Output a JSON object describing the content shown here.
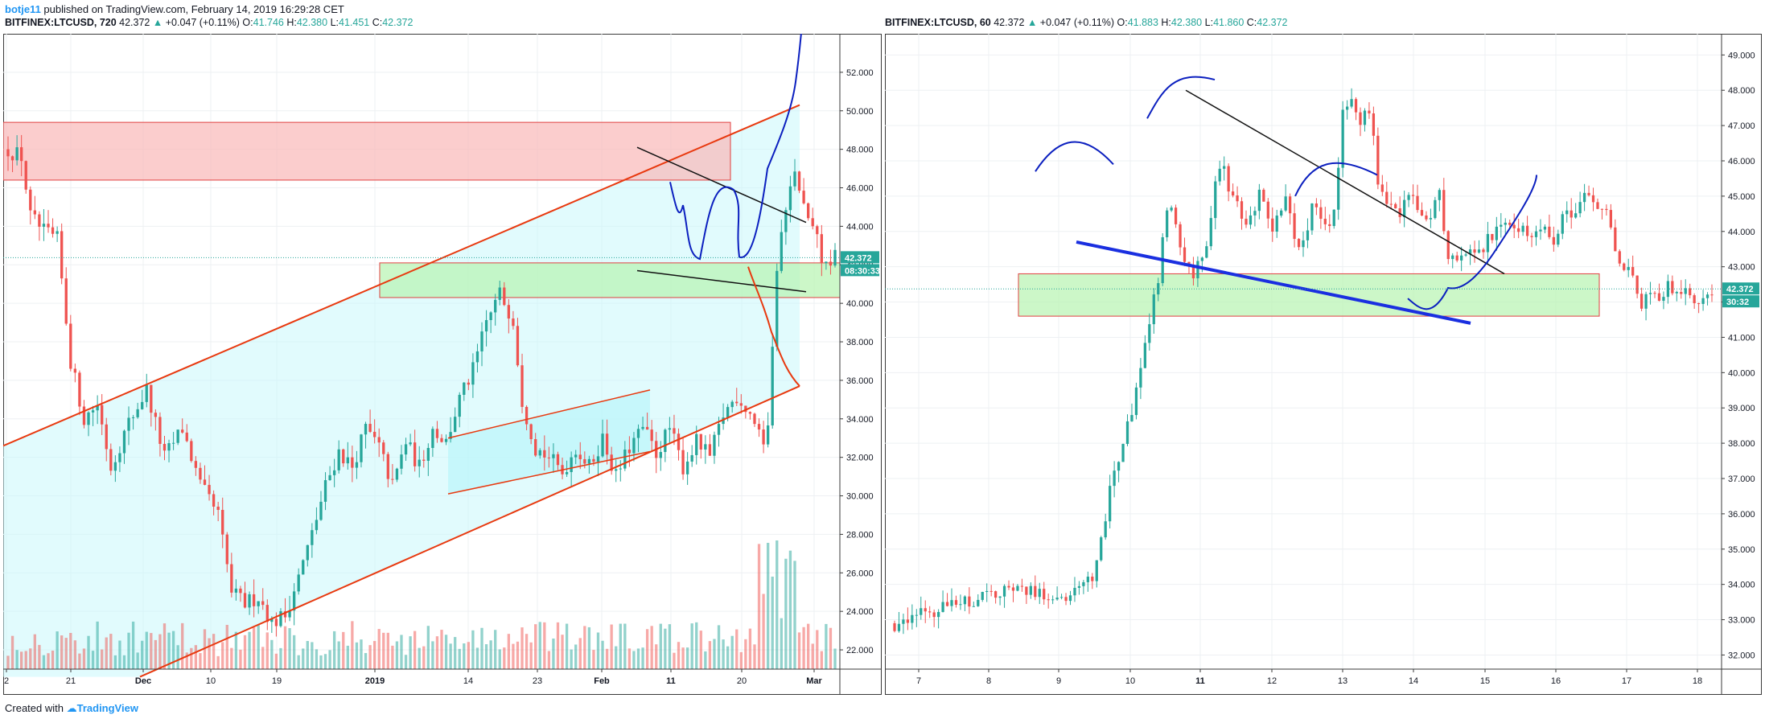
{
  "header": {
    "author": "botje11",
    "published": "published on TradingView.com, February 14, 2019 16:29:28 CET"
  },
  "left_legend": {
    "symbol": "BITFINEX:LTCUSD, 720",
    "last": "42.372",
    "change": "+0.047 (+0.11%)",
    "o": "41.746",
    "h": "42.380",
    "l": "41.451",
    "c": "42.372"
  },
  "right_legend": {
    "symbol": "BITFINEX:LTCUSD, 60",
    "last": "42.372",
    "change": "+0.047 (+0.11%)",
    "o": "41.883",
    "h": "42.380",
    "l": "41.860",
    "c": "42.372"
  },
  "footer": {
    "prefix": "Created with",
    "brand": "TradingView"
  },
  "colors": {
    "up": "#26a69a",
    "down": "#ef5350",
    "channel": "#e8390f",
    "user_line": "#0b1fbf",
    "resist_zone": "#f9b8b8",
    "support_zone": "#b6f4b0"
  },
  "chart_data": [
    {
      "type": "candlestick",
      "title": "BITFINEX:LTCUSD, 720",
      "ylim": [
        21,
        54
      ],
      "y_ticks": [
        "22.000",
        "24.000",
        "26.000",
        "28.000",
        "30.000",
        "32.000",
        "34.000",
        "36.000",
        "38.000",
        "40.000",
        "42.000",
        "44.000",
        "46.000",
        "48.000",
        "50.000",
        "52.000"
      ],
      "x_ticks": [
        "2",
        "21",
        "Dec",
        "10",
        "19",
        "2019",
        "14",
        "23",
        "Feb",
        "11",
        "20",
        "Mar"
      ],
      "last_price_label": "42.372",
      "countdown_label": "08:30:33",
      "zones": [
        {
          "kind": "resistance",
          "from": 46.4,
          "to": 49.4
        },
        {
          "kind": "support",
          "from": 40.3,
          "to": 42.1
        }
      ],
      "trend": [
        {
          "x": 0,
          "y": 48
        },
        {
          "x": 3,
          "y": 47.6
        },
        {
          "x": 5,
          "y": 44.5
        },
        {
          "x": 8,
          "y": 43.7
        },
        {
          "x": 11,
          "y": 43.3
        },
        {
          "x": 14,
          "y": 37
        },
        {
          "x": 17,
          "y": 34
        },
        {
          "x": 20,
          "y": 34.8
        },
        {
          "x": 23,
          "y": 31.5
        },
        {
          "x": 27,
          "y": 33.8
        },
        {
          "x": 31,
          "y": 35.5
        },
        {
          "x": 35,
          "y": 32
        },
        {
          "x": 39,
          "y": 33.5
        },
        {
          "x": 43,
          "y": 30.5
        },
        {
          "x": 47,
          "y": 29
        },
        {
          "x": 50,
          "y": 25
        },
        {
          "x": 53,
          "y": 24.4
        },
        {
          "x": 56,
          "y": 24.8
        },
        {
          "x": 59,
          "y": 23.4
        },
        {
          "x": 62,
          "y": 23.8
        },
        {
          "x": 65,
          "y": 25.8
        },
        {
          "x": 68,
          "y": 28
        },
        {
          "x": 71,
          "y": 30.5
        },
        {
          "x": 74,
          "y": 32.3
        },
        {
          "x": 77,
          "y": 31.5
        },
        {
          "x": 80,
          "y": 33.5
        },
        {
          "x": 83,
          "y": 32.5
        },
        {
          "x": 86,
          "y": 30.5
        },
        {
          "x": 89,
          "y": 32.8
        },
        {
          "x": 92,
          "y": 31.5
        },
        {
          "x": 95,
          "y": 33.5
        },
        {
          "x": 98,
          "y": 32.8
        },
        {
          "x": 101,
          "y": 35
        },
        {
          "x": 104,
          "y": 36.5
        },
        {
          "x": 107,
          "y": 39
        },
        {
          "x": 110,
          "y": 40.5
        },
        {
          "x": 113,
          "y": 39.2
        },
        {
          "x": 115,
          "y": 35
        },
        {
          "x": 118,
          "y": 32.5
        },
        {
          "x": 121,
          "y": 32
        },
        {
          "x": 124,
          "y": 31.2
        },
        {
          "x": 127,
          "y": 32.5
        },
        {
          "x": 130,
          "y": 31.5
        },
        {
          "x": 133,
          "y": 33
        },
        {
          "x": 136,
          "y": 31
        },
        {
          "x": 139,
          "y": 32.5
        },
        {
          "x": 142,
          "y": 33.5
        },
        {
          "x": 145,
          "y": 32.2
        },
        {
          "x": 148,
          "y": 33.5
        },
        {
          "x": 151,
          "y": 31.5
        },
        {
          "x": 154,
          "y": 32.8
        },
        {
          "x": 157,
          "y": 32
        },
        {
          "x": 160,
          "y": 34.2
        },
        {
          "x": 163,
          "y": 35.2
        },
        {
          "x": 166,
          "y": 34.3
        },
        {
          "x": 169,
          "y": 33
        },
        {
          "x": 170,
          "y": 34
        },
        {
          "x": 172,
          "y": 42
        },
        {
          "x": 174,
          "y": 45
        },
        {
          "x": 176,
          "y": 47
        },
        {
          "x": 178,
          "y": 45
        },
        {
          "x": 180,
          "y": 44
        },
        {
          "x": 182,
          "y": 42.5
        },
        {
          "x": 184,
          "y": 41.8
        },
        {
          "x": 185,
          "y": 42.37
        }
      ],
      "x_count": 186,
      "volume_max": 160
    },
    {
      "type": "candlestick",
      "title": "BITFINEX:LTCUSD, 60",
      "ylim": [
        31.6,
        49.6
      ],
      "y_ticks": [
        "32.000",
        "33.000",
        "34.000",
        "35.000",
        "36.000",
        "37.000",
        "38.000",
        "39.000",
        "40.000",
        "41.000",
        "42.000",
        "43.000",
        "44.000",
        "45.000",
        "46.000",
        "47.000",
        "48.000",
        "49.000"
      ],
      "x_ticks": [
        "7",
        "8",
        "9",
        "10",
        "11",
        "12",
        "13",
        "14",
        "15",
        "16",
        "17",
        "18"
      ],
      "last_price_label": "42.372",
      "countdown_label": "30:32",
      "zones": [
        {
          "kind": "support",
          "from": 41.6,
          "to": 42.8
        }
      ],
      "trend": [
        {
          "x": 0,
          "y": 32.9
        },
        {
          "x": 10,
          "y": 33.3
        },
        {
          "x": 20,
          "y": 33.6
        },
        {
          "x": 28,
          "y": 33.9
        },
        {
          "x": 35,
          "y": 33.7
        },
        {
          "x": 40,
          "y": 33.6
        },
        {
          "x": 45,
          "y": 34.2
        },
        {
          "x": 50,
          "y": 37.2
        },
        {
          "x": 54,
          "y": 38.8
        },
        {
          "x": 57,
          "y": 41
        },
        {
          "x": 60,
          "y": 42.5
        },
        {
          "x": 62,
          "y": 44.8
        },
        {
          "x": 64,
          "y": 44.2
        },
        {
          "x": 66,
          "y": 43.2
        },
        {
          "x": 68,
          "y": 42.7
        },
        {
          "x": 71,
          "y": 43.8
        },
        {
          "x": 74,
          "y": 46
        },
        {
          "x": 77,
          "y": 45
        },
        {
          "x": 80,
          "y": 44
        },
        {
          "x": 83,
          "y": 45
        },
        {
          "x": 86,
          "y": 44
        },
        {
          "x": 89,
          "y": 44.8
        },
        {
          "x": 92,
          "y": 43.5
        },
        {
          "x": 95,
          "y": 44.6
        },
        {
          "x": 98,
          "y": 44.2
        },
        {
          "x": 100,
          "y": 44.4
        },
        {
          "x": 102,
          "y": 47.5
        },
        {
          "x": 104,
          "y": 47.8
        },
        {
          "x": 106,
          "y": 47.2
        },
        {
          "x": 108,
          "y": 47.5
        },
        {
          "x": 110,
          "y": 45.5
        },
        {
          "x": 112,
          "y": 45
        },
        {
          "x": 115,
          "y": 44.6
        },
        {
          "x": 118,
          "y": 45
        },
        {
          "x": 121,
          "y": 44.3
        },
        {
          "x": 124,
          "y": 45
        },
        {
          "x": 126,
          "y": 43.2
        },
        {
          "x": 129,
          "y": 43.5
        },
        {
          "x": 132,
          "y": 43.2
        },
        {
          "x": 135,
          "y": 43.8
        },
        {
          "x": 138,
          "y": 44.2
        },
        {
          "x": 141,
          "y": 44.3
        },
        {
          "x": 144,
          "y": 43.8
        },
        {
          "x": 147,
          "y": 44.2
        },
        {
          "x": 150,
          "y": 43.8
        },
        {
          "x": 153,
          "y": 44.5
        },
        {
          "x": 156,
          "y": 44.8
        },
        {
          "x": 159,
          "y": 45
        },
        {
          "x": 162,
          "y": 44.5
        },
        {
          "x": 165,
          "y": 43.2
        },
        {
          "x": 168,
          "y": 42.8
        },
        {
          "x": 170,
          "y": 42
        },
        {
          "x": 172,
          "y": 42.4
        },
        {
          "x": 174,
          "y": 41.9
        },
        {
          "x": 176,
          "y": 42.6
        },
        {
          "x": 178,
          "y": 42.2
        },
        {
          "x": 180,
          "y": 42.5
        },
        {
          "x": 182,
          "y": 42
        },
        {
          "x": 184,
          "y": 42.2
        },
        {
          "x": 186,
          "y": 42.37
        }
      ],
      "x_count": 187,
      "volume_max": 0
    }
  ]
}
